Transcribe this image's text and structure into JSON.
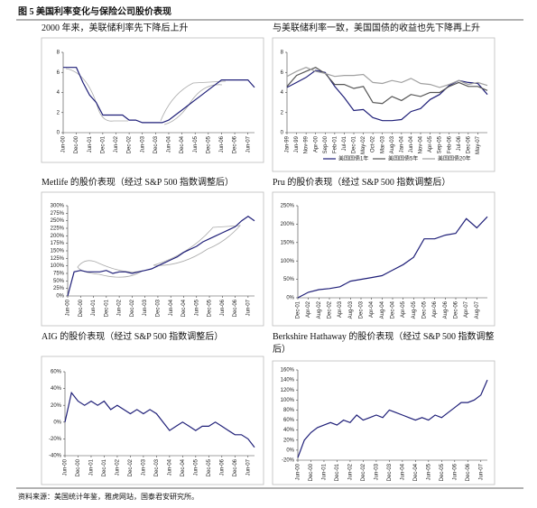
{
  "title": "图 5 美国利率变化与保险公司股价表现",
  "source": "资料来源：美国统计年鉴，雅虎网站，国泰君安研究所。",
  "chart_data": [
    {
      "type": "line",
      "title": "2000 年来，美联储利率先下降后上升",
      "categories": [
        "Jun-00",
        null,
        "Dec-00",
        null,
        "Jun-01",
        null,
        "Dec-01",
        null,
        "Jun-02",
        null,
        "Dec-02",
        null,
        "Jun-03",
        null,
        "Dec-03",
        null,
        "Jun-04",
        null,
        "Dec-04",
        null,
        "Jun-05",
        null,
        "Dec-05",
        null,
        "Jun-06",
        null,
        "Dec-06",
        null,
        "Jun-07",
        null
      ],
      "series": [
        {
          "color": "#1f1f78",
          "values": [
            6.5,
            6.5,
            6.5,
            5.0,
            3.75,
            3.0,
            1.75,
            1.75,
            1.75,
            1.75,
            1.25,
            1.25,
            1.0,
            1.0,
            1.0,
            1.0,
            1.25,
            1.75,
            2.25,
            2.75,
            3.25,
            3.75,
            4.25,
            4.75,
            5.25,
            5.25,
            5.25,
            5.25,
            5.25,
            4.5
          ]
        }
      ],
      "ylim": [
        0,
        8
      ],
      "yticks": [
        0,
        2,
        4,
        6,
        8
      ]
    },
    {
      "type": "line",
      "title": "与美联储利率一致，美国国债的收益也先下降再上升",
      "categories": [
        "Jan-99",
        "Jun-99",
        "Nov-99",
        "Apr-00",
        "Sep-00",
        "Feb-01",
        "Jul-01",
        "Dec-01",
        "May-02",
        "Oct-02",
        "Mar-03",
        "Aug-03",
        "Jan-04",
        "Jun-04",
        "Nov-04",
        "Apr-05",
        "Sep-05",
        "Feb-06",
        "Jul-06",
        "Dec-06",
        "May-07",
        null
      ],
      "series": [
        {
          "name": "美国国债1年",
          "color": "#1f1f78",
          "values": [
            4.5,
            5.0,
            5.5,
            6.2,
            6.0,
            4.6,
            3.5,
            2.2,
            2.3,
            1.5,
            1.2,
            1.2,
            1.3,
            2.1,
            2.4,
            3.3,
            3.8,
            4.7,
            5.2,
            5.0,
            4.9,
            3.8
          ]
        },
        {
          "name": "美国国债5年",
          "color": "#555555",
          "values": [
            4.6,
            5.7,
            6.1,
            6.5,
            5.9,
            4.8,
            4.8,
            4.4,
            4.6,
            3.0,
            2.9,
            3.6,
            3.2,
            3.8,
            3.6,
            4.0,
            4.0,
            4.6,
            5.0,
            4.6,
            4.6,
            4.2
          ]
        },
        {
          "name": "美国国债20年",
          "color": "#a0a0a0",
          "values": [
            5.6,
            6.1,
            6.5,
            6.1,
            5.9,
            5.6,
            5.7,
            5.7,
            5.8,
            5.0,
            4.9,
            5.2,
            5.0,
            5.4,
            4.9,
            4.8,
            4.5,
            4.8,
            5.2,
            4.8,
            5.0,
            4.7
          ]
        }
      ],
      "ylim": [
        0,
        8
      ],
      "yticks": [
        0,
        2,
        4,
        6,
        8
      ],
      "legend": "bottom"
    },
    {
      "type": "line",
      "title": "Metlife 的股价表现（经过 S&P 500 指数调整后）",
      "categories": [
        "Jun-00",
        null,
        "Dec-00",
        null,
        "Jun-01",
        null,
        "Dec-01",
        null,
        "Jun-02",
        null,
        "Dec-02",
        null,
        "Jun-03",
        null,
        "Dec-03",
        null,
        "Jun-04",
        null,
        "Dec-04",
        null,
        "Jun-05",
        null,
        "Dec-05",
        null,
        "Jun-06",
        null,
        "Dec-06",
        null,
        "Jun-07",
        null
      ],
      "series": [
        {
          "color": "#1f1f78",
          "values": [
            0,
            80,
            85,
            80,
            80,
            80,
            85,
            75,
            80,
            80,
            75,
            80,
            85,
            90,
            100,
            110,
            120,
            130,
            145,
            155,
            165,
            180,
            190,
            200,
            210,
            220,
            230,
            250,
            265,
            250
          ]
        }
      ],
      "ylim": [
        0,
        300
      ],
      "yticks": [
        {
          "value": 0,
          "label": "0%"
        },
        {
          "value": 25,
          "label": "25%"
        },
        {
          "value": 50,
          "label": "50%"
        },
        {
          "value": 75,
          "label": "75%"
        },
        {
          "value": 100,
          "label": "100%"
        },
        {
          "value": 125,
          "label": "125%"
        },
        {
          "value": 150,
          "label": "150%"
        },
        {
          "value": 175,
          "label": "175%"
        },
        {
          "value": 200,
          "label": "200%"
        },
        {
          "value": 225,
          "label": "225%"
        },
        {
          "value": 250,
          "label": "250%"
        },
        {
          "value": 275,
          "label": "275%"
        },
        {
          "value": 300,
          "label": "300%"
        }
      ]
    },
    {
      "type": "line",
      "title": "Pru 的股价表现（经过 S&P 500 指数调整后）",
      "categories": [
        "Dec-01",
        "Apr-02",
        "Aug-02",
        "Dec-02",
        "Apr-03",
        "Aug-03",
        "Dec-03",
        "Apr-04",
        "Aug-04",
        "Dec-04",
        "Apr-05",
        "Aug-05",
        "Dec-05",
        "Apr-06",
        "Aug-06",
        "Dec-06",
        "Apr-07",
        "Aug-07",
        null
      ],
      "series": [
        {
          "color": "#1f1f78",
          "values": [
            0,
            15,
            22,
            25,
            30,
            45,
            50,
            55,
            60,
            75,
            90,
            110,
            160,
            160,
            170,
            175,
            215,
            190,
            220
          ]
        }
      ],
      "ylim": [
        0,
        250
      ],
      "yticks": [
        {
          "value": 0,
          "label": "0%"
        },
        {
          "value": 50,
          "label": "50%"
        },
        {
          "value": 100,
          "label": "100%"
        },
        {
          "value": 150,
          "label": "150%"
        },
        {
          "value": 200,
          "label": "200%"
        },
        {
          "value": 250,
          "label": "250%"
        }
      ]
    },
    {
      "type": "line",
      "title": "AIG 的股价表现（经过 S&P 500 指数调整后）",
      "categories": [
        "Jun-00",
        null,
        "Dec-00",
        null,
        "Jun-01",
        null,
        "Dec-01",
        null,
        "Jun-02",
        null,
        "Dec-02",
        null,
        "Jun-03",
        null,
        "Dec-03",
        null,
        "Jun-04",
        null,
        "Dec-04",
        null,
        "Jun-05",
        null,
        "Dec-05",
        null,
        "Jun-06",
        null,
        "Dec-06",
        null,
        "Jun-07",
        null
      ],
      "series": [
        {
          "color": "#1f1f78",
          "values": [
            0,
            35,
            25,
            20,
            25,
            20,
            25,
            15,
            20,
            15,
            10,
            15,
            10,
            15,
            10,
            0,
            -10,
            -5,
            0,
            -5,
            -10,
            -5,
            -5,
            0,
            -5,
            -10,
            -15,
            -15,
            -20,
            -30
          ]
        }
      ],
      "ylim": [
        -40,
        60
      ],
      "yticks": [
        {
          "value": -40,
          "label": "-40%"
        },
        {
          "value": -20,
          "label": "-20%"
        },
        {
          "value": 0,
          "label": "0%"
        },
        {
          "value": 20,
          "label": "20%"
        },
        {
          "value": 40,
          "label": "40%"
        },
        {
          "value": 60,
          "label": "60%"
        }
      ]
    },
    {
      "type": "line",
      "title": "Berkshire Hathaway 的股价表现（经过 S&P 500 指数调整后）",
      "categories": [
        "Jun-00",
        null,
        "Dec-00",
        null,
        "Jun-01",
        null,
        "Dec-01",
        null,
        "Jun-02",
        null,
        "Dec-02",
        null,
        "Jun-03",
        null,
        "Dec-03",
        null,
        "Jun-04",
        null,
        "Dec-04",
        null,
        "Jun-05",
        null,
        "Dec-05",
        null,
        "Jun-06",
        null,
        "Dec-06",
        null,
        "Jun-07",
        null
      ],
      "series": [
        {
          "color": "#1f1f78",
          "values": [
            -15,
            20,
            35,
            45,
            50,
            55,
            50,
            60,
            55,
            70,
            60,
            65,
            70,
            65,
            80,
            75,
            70,
            65,
            60,
            65,
            60,
            70,
            65,
            75,
            85,
            95,
            95,
            100,
            110,
            140
          ]
        }
      ],
      "ylim": [
        -20,
        160
      ],
      "yticks": [
        {
          "value": -20,
          "label": "-20%"
        },
        {
          "value": 0,
          "label": "0%"
        },
        {
          "value": 20,
          "label": "20%"
        },
        {
          "value": 40,
          "label": "40%"
        },
        {
          "value": 60,
          "label": "60%"
        },
        {
          "value": 80,
          "label": "80%"
        },
        {
          "value": 100,
          "label": "100%"
        },
        {
          "value": 120,
          "label": "120%"
        },
        {
          "value": 140,
          "label": "140%"
        },
        {
          "value": 160,
          "label": "160%"
        }
      ]
    }
  ]
}
